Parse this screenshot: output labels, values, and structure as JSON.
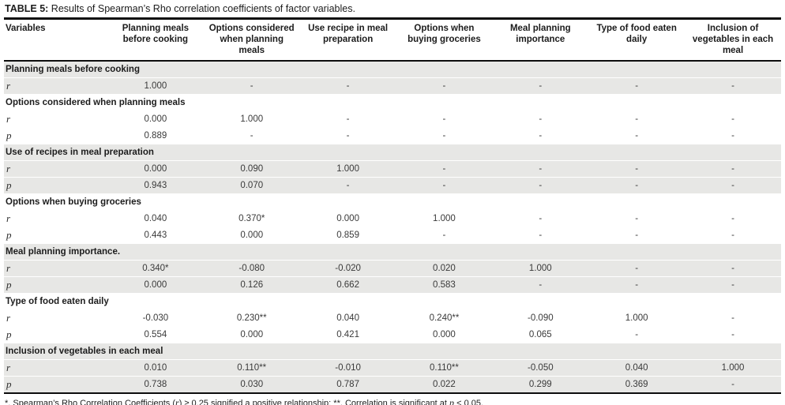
{
  "title": {
    "label": "TABLE 5:",
    "text": " Results of Spearman’s Rho correlation coefficients of factor variables."
  },
  "table": {
    "variables_header": "Variables",
    "columns": [
      "Planning meals before cooking",
      "Options considered when planning meals",
      "Use recipe in meal preparation",
      "Options when buying groceries",
      "Meal planning importance",
      "Type of food eaten daily",
      "Inclusion of vegetables in each meal"
    ],
    "sections": [
      {
        "name": "Planning meals before cooking",
        "shaded": true,
        "rows": [
          {
            "label": "r",
            "values": [
              "1.000",
              "-",
              "-",
              "-",
              "-",
              "-",
              "-"
            ]
          }
        ]
      },
      {
        "name": "Options considered when planning meals",
        "shaded": false,
        "rows": [
          {
            "label": "r",
            "values": [
              "0.000",
              "1.000",
              "-",
              "-",
              "-",
              "-",
              "-"
            ]
          },
          {
            "label": "p",
            "values": [
              "0.889",
              "-",
              "-",
              "-",
              "-",
              "-",
              "-"
            ]
          }
        ]
      },
      {
        "name": "Use of recipes in meal preparation",
        "shaded": true,
        "rows": [
          {
            "label": "r",
            "values": [
              "0.000",
              "0.090",
              "1.000",
              "-",
              "-",
              "-",
              "-"
            ]
          },
          {
            "label": "p",
            "values": [
              "0.943",
              "0.070",
              "-",
              "-",
              "-",
              "-",
              "-"
            ]
          }
        ]
      },
      {
        "name": "Options when buying groceries",
        "shaded": false,
        "rows": [
          {
            "label": "r",
            "values": [
              "0.040",
              "0.370*",
              "0.000",
              "1.000",
              "-",
              "-",
              "-"
            ]
          },
          {
            "label": "p",
            "values": [
              "0.443",
              "0.000",
              "0.859",
              "-",
              "-",
              "-",
              "-"
            ]
          }
        ]
      },
      {
        "name": "Meal planning importance.",
        "shaded": true,
        "rows": [
          {
            "label": "r",
            "values": [
              "0.340*",
              "-0.080",
              "-0.020",
              "0.020",
              "1.000",
              "-",
              "-"
            ]
          },
          {
            "label": "p",
            "values": [
              "0.000",
              "0.126",
              "0.662",
              "0.583",
              "-",
              "-",
              "-"
            ]
          }
        ]
      },
      {
        "name": "Type of food eaten daily",
        "shaded": false,
        "rows": [
          {
            "label": "r",
            "values": [
              "-0.030",
              "0.230**",
              "0.040",
              "0.240**",
              "-0.090",
              "1.000",
              "-"
            ]
          },
          {
            "label": "p",
            "values": [
              "0.554",
              "0.000",
              "0.421",
              "0.000",
              "0.065",
              "-",
              "-"
            ]
          }
        ]
      },
      {
        "name": "Inclusion of vegetables in each meal",
        "shaded": true,
        "rows": [
          {
            "label": "r",
            "values": [
              "0.010",
              "0.110**",
              "-0.010",
              "0.110**",
              "-0.050",
              "0.040",
              "1.000"
            ]
          },
          {
            "label": "p",
            "values": [
              "0.738",
              "0.030",
              "0.787",
              "0.022",
              "0.299",
              "0.369",
              "-"
            ]
          }
        ]
      }
    ]
  },
  "footnote_parts": [
    {
      "text": "*, Spearman’s Rho Correlation Coefficients ("
    },
    {
      "text": "r",
      "italic": true
    },
    {
      "text": ") ≥ 0.25 signified a positive relationship; **, Correlation is significant at "
    },
    {
      "text": "p",
      "italic": true
    },
    {
      "text": " < 0.05."
    }
  ],
  "colors": {
    "shaded_row": "#e7e7e5",
    "rule": "#0d0d0d",
    "text": "#2d2d2d"
  }
}
